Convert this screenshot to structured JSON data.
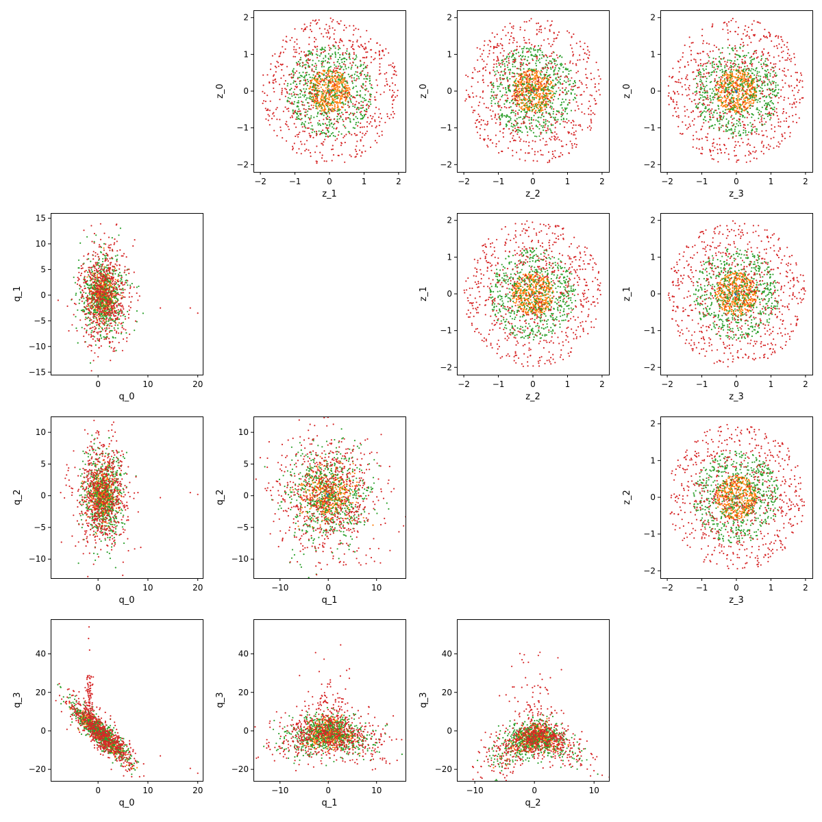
{
  "figure": {
    "title": "",
    "series_colors": [
      "#1f77b4",
      "#ff7f0e",
      "#2ca02c",
      "#d62728"
    ],
    "series_order_note": "blue (tiny cluster at origin), orange, green, red"
  },
  "chart_data": [
    {
      "id": "z0-vs-z1",
      "type": "scatter",
      "xlabel": "z_1",
      "ylabel": "z_0",
      "xlim": [
        -2.2,
        2.2
      ],
      "ylim": [
        -2.2,
        2.2
      ],
      "xticks": [
        -2,
        -1,
        0,
        1,
        2
      ],
      "yticks": [
        -2,
        -1,
        0,
        1,
        2
      ],
      "cloud": {
        "shape": "ring",
        "radii": [
          0.05,
          0.6,
          1.25,
          2.0
        ],
        "counts": [
          15,
          450,
          600,
          700
        ],
        "seed": 11
      }
    },
    {
      "id": "z0-vs-z2",
      "type": "scatter",
      "xlabel": "z_2",
      "ylabel": "z_0",
      "xlim": [
        -2.2,
        2.2
      ],
      "ylim": [
        -2.2,
        2.2
      ],
      "xticks": [
        -2,
        -1,
        0,
        1,
        2
      ],
      "yticks": [
        -2,
        -1,
        0,
        1,
        2
      ],
      "cloud": {
        "shape": "ring",
        "radii": [
          0.05,
          0.6,
          1.25,
          2.0
        ],
        "counts": [
          15,
          450,
          600,
          700
        ],
        "seed": 12
      }
    },
    {
      "id": "z0-vs-z3",
      "type": "scatter",
      "xlabel": "z_3",
      "ylabel": "z_0",
      "xlim": [
        -2.2,
        2.2
      ],
      "ylim": [
        -2.2,
        2.2
      ],
      "xticks": [
        -2,
        -1,
        0,
        1,
        2
      ],
      "yticks": [
        -2,
        -1,
        0,
        1,
        2
      ],
      "cloud": {
        "shape": "ring",
        "radii": [
          0.05,
          0.6,
          1.25,
          2.0
        ],
        "counts": [
          15,
          450,
          600,
          700
        ],
        "seed": 13
      }
    },
    {
      "id": "q1-vs-q0",
      "type": "scatter",
      "xlabel": "q_0",
      "ylabel": "q_1",
      "xlim": [
        -9.5,
        21
      ],
      "ylim": [
        -15.5,
        16
      ],
      "xticks": [
        0,
        10,
        20
      ],
      "yticks": [
        -15,
        -10,
        -5,
        0,
        5,
        10,
        15
      ],
      "cloud": {
        "shape": "gauss",
        "center": [
          1,
          0
        ],
        "sx": [
          0.3,
          1.3,
          2.2,
          2.6
        ],
        "sy": [
          0.3,
          2.2,
          4.0,
          5.0
        ],
        "counts": [
          15,
          450,
          600,
          700
        ],
        "seed": 21,
        "outliers": [
          [
            18.5,
            -2.5
          ],
          [
            20,
            -3.5
          ],
          [
            12.5,
            -2.5
          ],
          [
            8,
            -1
          ],
          [
            -8,
            -1
          ]
        ]
      }
    },
    {
      "id": "z1-vs-z2",
      "type": "scatter",
      "xlabel": "z_2",
      "ylabel": "z_1",
      "xlim": [
        -2.2,
        2.2
      ],
      "ylim": [
        -2.2,
        2.2
      ],
      "xticks": [
        -2,
        -1,
        0,
        1,
        2
      ],
      "yticks": [
        -2,
        -1,
        0,
        1,
        2
      ],
      "cloud": {
        "shape": "ring",
        "radii": [
          0.05,
          0.6,
          1.25,
          2.0
        ],
        "counts": [
          15,
          450,
          600,
          700
        ],
        "seed": 22
      }
    },
    {
      "id": "z1-vs-z3",
      "type": "scatter",
      "xlabel": "z_3",
      "ylabel": "z_1",
      "xlim": [
        -2.2,
        2.2
      ],
      "ylim": [
        -2.2,
        2.2
      ],
      "xticks": [
        -2,
        -1,
        0,
        1,
        2
      ],
      "yticks": [
        -2,
        -1,
        0,
        1,
        2
      ],
      "cloud": {
        "shape": "ring",
        "radii": [
          0.05,
          0.6,
          1.25,
          2.0
        ],
        "counts": [
          15,
          450,
          600,
          700
        ],
        "seed": 23
      }
    },
    {
      "id": "q2-vs-q0",
      "type": "scatter",
      "xlabel": "q_0",
      "ylabel": "q_2",
      "xlim": [
        -9.5,
        21
      ],
      "ylim": [
        -13,
        12.5
      ],
      "xticks": [
        0,
        10,
        20
      ],
      "yticks": [
        -10,
        -5,
        0,
        5,
        10
      ],
      "cloud": {
        "shape": "gauss",
        "center": [
          1,
          0
        ],
        "sx": [
          0.3,
          1.3,
          2.0,
          2.6
        ],
        "sy": [
          0.3,
          2.0,
          3.5,
          4.2
        ],
        "counts": [
          15,
          450,
          600,
          700
        ],
        "seed": 31,
        "outliers": [
          [
            18.5,
            0.5
          ],
          [
            20,
            0.2
          ],
          [
            12.5,
            -0.3
          ],
          [
            8,
            0.5
          ],
          [
            -7.5,
            0.5
          ]
        ]
      }
    },
    {
      "id": "q2-vs-q1",
      "type": "scatter",
      "xlabel": "q_1",
      "ylabel": "q_2",
      "xlim": [
        -15.5,
        16
      ],
      "ylim": [
        -13,
        12.5
      ],
      "xticks": [
        -10,
        0,
        10
      ],
      "yticks": [
        -10,
        -5,
        0,
        5,
        10
      ],
      "cloud": {
        "shape": "gauss",
        "center": [
          0,
          0
        ],
        "sx": [
          0.3,
          2.5,
          4.5,
          6.0
        ],
        "sy": [
          0.3,
          2.0,
          3.8,
          4.8
        ],
        "counts": [
          15,
          450,
          600,
          700
        ],
        "seed": 32
      }
    },
    {
      "id": "z2-vs-z3",
      "type": "scatter",
      "xlabel": "z_3",
      "ylabel": "z_2",
      "xlim": [
        -2.2,
        2.2
      ],
      "ylim": [
        -2.2,
        2.2
      ],
      "xticks": [
        -2,
        -1,
        0,
        1,
        2
      ],
      "yticks": [
        -2,
        -1,
        0,
        1,
        2
      ],
      "cloud": {
        "shape": "ring",
        "radii": [
          0.05,
          0.6,
          1.25,
          2.0
        ],
        "counts": [
          15,
          450,
          600,
          700
        ],
        "seed": 33
      }
    },
    {
      "id": "q3-vs-q0",
      "type": "scatter",
      "xlabel": "q_0",
      "ylabel": "q_3",
      "xlim": [
        -9.5,
        21
      ],
      "ylim": [
        -26,
        58
      ],
      "xticks": [
        0,
        10,
        20
      ],
      "yticks": [
        -20,
        0,
        20,
        40
      ],
      "cloud": {
        "shape": "diag",
        "counts": [
          15,
          450,
          600,
          700
        ],
        "seed": 41,
        "outliers": [
          [
            18.5,
            -19.5
          ],
          [
            20,
            -22
          ],
          [
            12.5,
            -13
          ],
          [
            -1.8,
            54
          ],
          [
            -1.9,
            48
          ],
          [
            -1.7,
            42
          ]
        ]
      }
    },
    {
      "id": "q3-vs-q1",
      "type": "scatter",
      "xlabel": "q_1",
      "ylabel": "q_3",
      "xlim": [
        -15.5,
        16
      ],
      "ylim": [
        -26,
        58
      ],
      "xticks": [
        -10,
        0,
        10
      ],
      "yticks": [
        -20,
        0,
        20,
        40
      ],
      "cloud": {
        "shape": "fan",
        "counts": [
          15,
          450,
          600,
          700
        ],
        "seed": 42
      }
    },
    {
      "id": "q3-vs-q2",
      "type": "scatter",
      "xlabel": "q_2",
      "ylabel": "q_3",
      "xlim": [
        -13,
        12.5
      ],
      "ylim": [
        -26,
        58
      ],
      "xticks": [
        -10,
        0,
        10
      ],
      "yticks": [
        -20,
        0,
        20,
        40
      ],
      "cloud": {
        "shape": "arch",
        "counts": [
          15,
          450,
          600,
          700
        ],
        "seed": 43
      }
    }
  ]
}
